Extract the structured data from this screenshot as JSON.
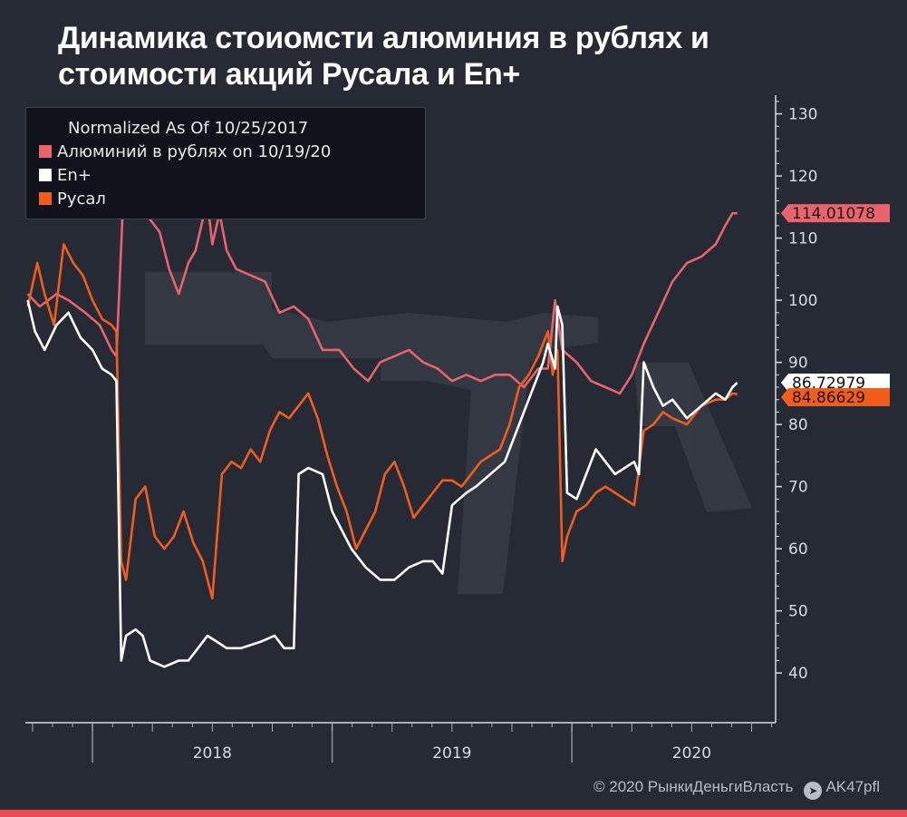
{
  "title": "Динамика стоиомсти алюминия в рублях и стоимости акций Русала и En+",
  "credits": {
    "copyright": "© 2020  РынкиДеньгиВласть",
    "telegram": "AK47pfl",
    "telegram_icon": "telegram-icon"
  },
  "chart_data": {
    "type": "line",
    "legend_title": "Normalized As Of 10/25/2017",
    "legend_position": "top-left",
    "y_axis_position": "right",
    "ylim": [
      32,
      133
    ],
    "xlim": [
      2017.72,
      2020.85
    ],
    "y_ticks": [
      40,
      50,
      60,
      70,
      80,
      90,
      100,
      110,
      120,
      130
    ],
    "x_tick_labels": [
      {
        "label": "2018",
        "x": 2018.5
      },
      {
        "label": "2019",
        "x": 2019.5
      },
      {
        "label": "2020",
        "x": 2020.5
      }
    ],
    "x_year_boundaries": [
      2018.0,
      2019.0,
      2020.0
    ],
    "grid": false,
    "series": [
      {
        "name": "Алюминий в рублях on 10/19/20",
        "color": "#e8636b",
        "last_value_label": "114.01078",
        "points": [
          [
            2017.73,
            101
          ],
          [
            2017.78,
            99
          ],
          [
            2017.85,
            101
          ],
          [
            2017.9,
            100
          ],
          [
            2017.97,
            98
          ],
          [
            2018.03,
            96
          ],
          [
            2018.08,
            92
          ],
          [
            2018.1,
            91
          ],
          [
            2018.13,
            118
          ],
          [
            2018.16,
            121
          ],
          [
            2018.2,
            116
          ],
          [
            2018.24,
            113
          ],
          [
            2018.28,
            111
          ],
          [
            2018.32,
            105
          ],
          [
            2018.36,
            101
          ],
          [
            2018.4,
            106
          ],
          [
            2018.43,
            108
          ],
          [
            2018.46,
            113
          ],
          [
            2018.48,
            116
          ],
          [
            2018.5,
            109
          ],
          [
            2018.53,
            114
          ],
          [
            2018.56,
            108
          ],
          [
            2018.6,
            105
          ],
          [
            2018.66,
            104
          ],
          [
            2018.72,
            103
          ],
          [
            2018.78,
            98
          ],
          [
            2018.84,
            99
          ],
          [
            2018.9,
            97
          ],
          [
            2018.96,
            92
          ],
          [
            2019.03,
            92
          ],
          [
            2019.09,
            89
          ],
          [
            2019.15,
            87
          ],
          [
            2019.2,
            90
          ],
          [
            2019.26,
            91
          ],
          [
            2019.32,
            92
          ],
          [
            2019.38,
            90
          ],
          [
            2019.44,
            89
          ],
          [
            2019.5,
            87
          ],
          [
            2019.56,
            88
          ],
          [
            2019.62,
            87
          ],
          [
            2019.68,
            88
          ],
          [
            2019.74,
            88
          ],
          [
            2019.8,
            86
          ],
          [
            2019.86,
            89
          ],
          [
            2019.9,
            89
          ],
          [
            2019.93,
            100
          ],
          [
            2019.96,
            92
          ],
          [
            2020.02,
            90
          ],
          [
            2020.08,
            87
          ],
          [
            2020.14,
            86
          ],
          [
            2020.2,
            85
          ],
          [
            2020.25,
            88
          ],
          [
            2020.3,
            93
          ],
          [
            2020.36,
            98
          ],
          [
            2020.42,
            103
          ],
          [
            2020.48,
            106
          ],
          [
            2020.54,
            107
          ],
          [
            2020.6,
            109
          ],
          [
            2020.64,
            112
          ],
          [
            2020.67,
            114
          ],
          [
            2020.69,
            114.01
          ]
        ]
      },
      {
        "name": "En+",
        "color": "#ffffff",
        "last_value_label": "86.72979",
        "points": [
          [
            2017.73,
            100
          ],
          [
            2017.76,
            95
          ],
          [
            2017.8,
            92
          ],
          [
            2017.85,
            96
          ],
          [
            2017.9,
            98
          ],
          [
            2017.95,
            94
          ],
          [
            2018.0,
            92
          ],
          [
            2018.04,
            89
          ],
          [
            2018.08,
            88
          ],
          [
            2018.1,
            87
          ],
          [
            2018.12,
            42
          ],
          [
            2018.14,
            46
          ],
          [
            2018.18,
            47
          ],
          [
            2018.21,
            46
          ],
          [
            2018.24,
            42
          ],
          [
            2018.3,
            41
          ],
          [
            2018.36,
            42
          ],
          [
            2018.4,
            42
          ],
          [
            2018.44,
            44
          ],
          [
            2018.48,
            46
          ],
          [
            2018.52,
            45
          ],
          [
            2018.56,
            44
          ],
          [
            2018.62,
            44
          ],
          [
            2018.7,
            45
          ],
          [
            2018.76,
            46
          ],
          [
            2018.8,
            44
          ],
          [
            2018.84,
            44
          ],
          [
            2018.86,
            72
          ],
          [
            2018.9,
            73
          ],
          [
            2018.96,
            72
          ],
          [
            2019.0,
            66
          ],
          [
            2019.04,
            63
          ],
          [
            2019.08,
            60
          ],
          [
            2019.14,
            57
          ],
          [
            2019.2,
            55
          ],
          [
            2019.26,
            55
          ],
          [
            2019.32,
            57
          ],
          [
            2019.38,
            58
          ],
          [
            2019.42,
            58
          ],
          [
            2019.46,
            56
          ],
          [
            2019.5,
            67
          ],
          [
            2019.56,
            69
          ],
          [
            2019.6,
            70
          ],
          [
            2019.66,
            72
          ],
          [
            2019.72,
            74
          ],
          [
            2019.78,
            80
          ],
          [
            2019.84,
            86
          ],
          [
            2019.88,
            90
          ],
          [
            2019.9,
            93
          ],
          [
            2019.93,
            89
          ],
          [
            2019.94,
            99
          ],
          [
            2019.96,
            96
          ],
          [
            2019.98,
            69
          ],
          [
            2020.02,
            68
          ],
          [
            2020.06,
            72
          ],
          [
            2020.1,
            76
          ],
          [
            2020.14,
            74
          ],
          [
            2020.18,
            72
          ],
          [
            2020.22,
            73
          ],
          [
            2020.26,
            74
          ],
          [
            2020.28,
            72
          ],
          [
            2020.3,
            90
          ],
          [
            2020.34,
            86
          ],
          [
            2020.38,
            83
          ],
          [
            2020.42,
            84
          ],
          [
            2020.48,
            81
          ],
          [
            2020.54,
            83
          ],
          [
            2020.6,
            85
          ],
          [
            2020.64,
            84
          ],
          [
            2020.67,
            86
          ],
          [
            2020.69,
            86.73
          ]
        ]
      },
      {
        "name": "Русал",
        "color": "#f25c1c",
        "last_value_label": "84.86629",
        "points": [
          [
            2017.73,
            99
          ],
          [
            2017.77,
            106
          ],
          [
            2017.8,
            101
          ],
          [
            2017.84,
            96
          ],
          [
            2017.88,
            109
          ],
          [
            2017.92,
            106
          ],
          [
            2017.96,
            104
          ],
          [
            2018.0,
            100
          ],
          [
            2018.04,
            97
          ],
          [
            2018.08,
            96
          ],
          [
            2018.1,
            95
          ],
          [
            2018.12,
            58
          ],
          [
            2018.14,
            55
          ],
          [
            2018.18,
            68
          ],
          [
            2018.22,
            70
          ],
          [
            2018.26,
            62
          ],
          [
            2018.3,
            60
          ],
          [
            2018.34,
            62
          ],
          [
            2018.38,
            66
          ],
          [
            2018.42,
            61
          ],
          [
            2018.46,
            58
          ],
          [
            2018.5,
            52
          ],
          [
            2018.54,
            72
          ],
          [
            2018.58,
            74
          ],
          [
            2018.62,
            73
          ],
          [
            2018.66,
            76
          ],
          [
            2018.7,
            74
          ],
          [
            2018.74,
            79
          ],
          [
            2018.78,
            82
          ],
          [
            2018.82,
            81
          ],
          [
            2018.86,
            83
          ],
          [
            2018.9,
            85
          ],
          [
            2018.94,
            81
          ],
          [
            2018.98,
            75
          ],
          [
            2019.02,
            70
          ],
          [
            2019.06,
            66
          ],
          [
            2019.1,
            60
          ],
          [
            2019.14,
            63
          ],
          [
            2019.18,
            66
          ],
          [
            2019.22,
            72
          ],
          [
            2019.26,
            74
          ],
          [
            2019.3,
            70
          ],
          [
            2019.34,
            65
          ],
          [
            2019.38,
            67
          ],
          [
            2019.42,
            69
          ],
          [
            2019.46,
            71
          ],
          [
            2019.5,
            71
          ],
          [
            2019.54,
            70
          ],
          [
            2019.58,
            72
          ],
          [
            2019.62,
            74
          ],
          [
            2019.66,
            75
          ],
          [
            2019.7,
            76
          ],
          [
            2019.74,
            80
          ],
          [
            2019.78,
            86
          ],
          [
            2019.82,
            88
          ],
          [
            2019.86,
            91
          ],
          [
            2019.9,
            95
          ],
          [
            2019.92,
            88
          ],
          [
            2019.94,
            92
          ],
          [
            2019.96,
            58
          ],
          [
            2019.98,
            62
          ],
          [
            2020.02,
            66
          ],
          [
            2020.06,
            67
          ],
          [
            2020.1,
            69
          ],
          [
            2020.14,
            70
          ],
          [
            2020.18,
            69
          ],
          [
            2020.22,
            68
          ],
          [
            2020.26,
            67
          ],
          [
            2020.3,
            79
          ],
          [
            2020.34,
            80
          ],
          [
            2020.38,
            82
          ],
          [
            2020.42,
            81
          ],
          [
            2020.48,
            80
          ],
          [
            2020.54,
            83
          ],
          [
            2020.6,
            84
          ],
          [
            2020.64,
            84
          ],
          [
            2020.67,
            85
          ],
          [
            2020.69,
            84.87
          ]
        ]
      }
    ]
  }
}
